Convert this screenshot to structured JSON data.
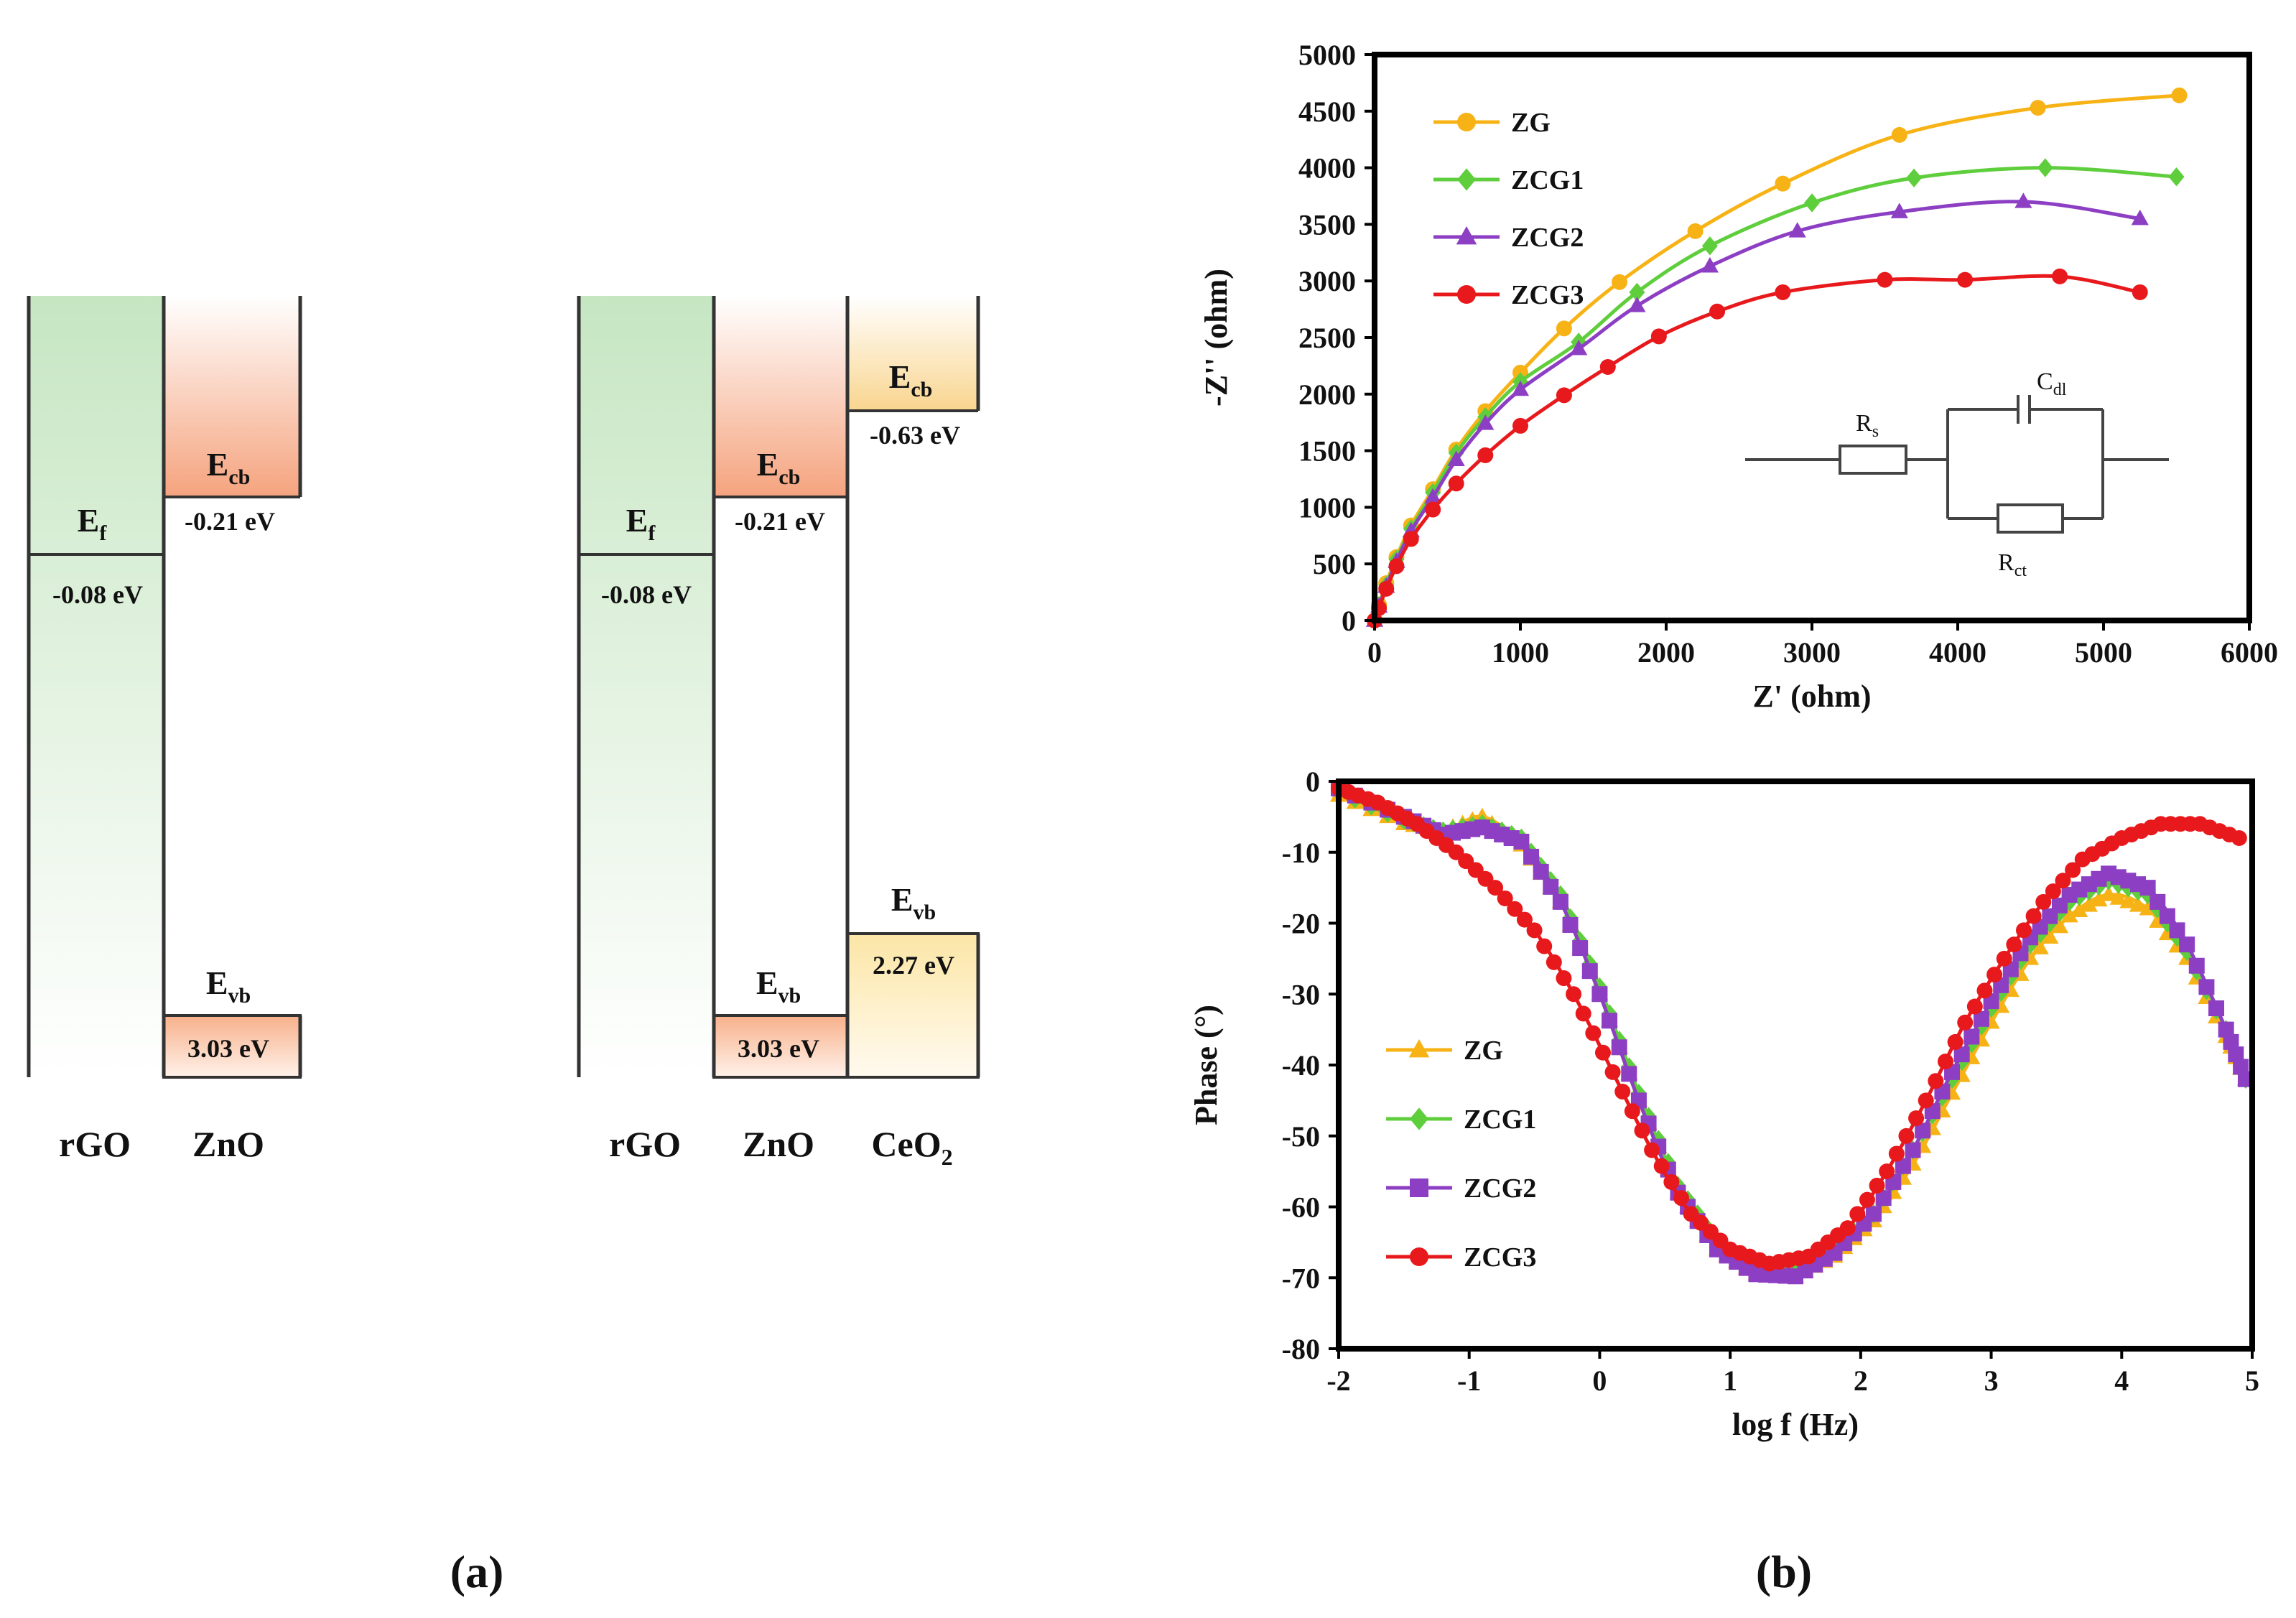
{
  "panel_a": {
    "label": "(a)",
    "diagrams": [
      {
        "materials": [
          {
            "name": "rGO",
            "level_symbol": "E",
            "level_sub": "f",
            "level_value": "-0.08 eV"
          },
          {
            "name": "ZnO",
            "cb_symbol": "E",
            "cb_sub": "cb",
            "cb_value": "-0.21 eV",
            "vb_symbol": "E",
            "vb_sub": "vb",
            "vb_value": "3.03 eV"
          }
        ]
      },
      {
        "materials": [
          {
            "name": "rGO",
            "level_symbol": "E",
            "level_sub": "f",
            "level_value": "-0.08 eV"
          },
          {
            "name": "ZnO",
            "cb_symbol": "E",
            "cb_sub": "cb",
            "cb_value": "-0.21 eV",
            "vb_symbol": "E",
            "vb_sub": "vb",
            "vb_value": "3.03 eV"
          },
          {
            "name": "CeO",
            "name_sub": "2",
            "cb_symbol": "E",
            "cb_sub": "cb",
            "cb_value": "-0.63 eV",
            "vb_symbol": "E",
            "vb_sub": "vb",
            "vb_value": "2.27 eV"
          }
        ]
      }
    ]
  },
  "panel_b_label": "(b)",
  "colors": {
    "ZG": "#f7b316",
    "ZCG1": "#5fce3c",
    "ZCG2": "#8d3fc4",
    "ZCG3": "#e8191c"
  },
  "circuit": {
    "rs": "R",
    "rs_sub": "s",
    "cdl": "C",
    "cdl_sub": "dl",
    "rct": "R",
    "rct_sub": "ct"
  },
  "chart_data": [
    {
      "type": "scatter",
      "title": "",
      "xlabel": "Z' (ohm)",
      "ylabel": "-Z'' (ohm)",
      "xlim": [
        0,
        6000
      ],
      "ylim": [
        0,
        5000
      ],
      "xticks": [
        0,
        1000,
        2000,
        3000,
        4000,
        5000,
        6000
      ],
      "yticks": [
        0,
        500,
        1000,
        1500,
        2000,
        2500,
        3000,
        3500,
        4000,
        4500,
        5000
      ],
      "legend_position": "top-left",
      "series": [
        {
          "name": "ZG",
          "marker": "circle",
          "x": [
            0,
            30,
            80,
            150,
            250,
            400,
            560,
            760,
            1000,
            1300,
            1680,
            2200,
            2800,
            3600,
            4550,
            5520
          ],
          "y": [
            0,
            140,
            330,
            560,
            840,
            1160,
            1510,
            1850,
            2190,
            2580,
            2990,
            3440,
            3860,
            4290,
            4530,
            4640
          ]
        },
        {
          "name": "ZCG1",
          "marker": "diamond",
          "x": [
            0,
            30,
            80,
            150,
            250,
            400,
            560,
            760,
            1000,
            1400,
            1800,
            2300,
            3000,
            3700,
            4600,
            5500
          ],
          "y": [
            0,
            130,
            310,
            540,
            810,
            1130,
            1480,
            1800,
            2110,
            2460,
            2900,
            3310,
            3690,
            3910,
            4000,
            3920
          ]
        },
        {
          "name": "ZCG2",
          "marker": "triangle",
          "x": [
            0,
            30,
            80,
            150,
            250,
            400,
            560,
            760,
            1000,
            1400,
            1800,
            2300,
            2900,
            3600,
            4450,
            5250
          ],
          "y": [
            0,
            125,
            300,
            520,
            790,
            1090,
            1420,
            1740,
            2040,
            2400,
            2780,
            3130,
            3440,
            3610,
            3700,
            3550
          ]
        },
        {
          "name": "ZCG3",
          "marker": "circle",
          "x": [
            0,
            30,
            80,
            150,
            250,
            400,
            560,
            760,
            1000,
            1300,
            1600,
            1950,
            2350,
            2800,
            3500,
            4050,
            4700,
            5250
          ],
          "y": [
            0,
            110,
            280,
            480,
            720,
            980,
            1210,
            1460,
            1720,
            1990,
            2240,
            2510,
            2730,
            2900,
            3010,
            3010,
            3040,
            2900
          ]
        }
      ]
    },
    {
      "type": "line",
      "title": "",
      "xlabel": "log f (Hz)",
      "ylabel": "Phase (°)",
      "xlim": [
        -2,
        5
      ],
      "ylim": [
        -80,
        0
      ],
      "xticks": [
        -2,
        -1,
        0,
        1,
        2,
        3,
        4,
        5
      ],
      "yticks": [
        0,
        -10,
        -20,
        -30,
        -40,
        -50,
        -60,
        -70,
        -80
      ],
      "legend_position": "left",
      "series": [
        {
          "name": "ZG",
          "marker": "triangle",
          "x": [
            -2,
            -1.5,
            -1.2,
            -0.9,
            -0.6,
            -0.3,
            0,
            0.3,
            0.6,
            0.9,
            1.2,
            1.5,
            1.8,
            2.1,
            2.4,
            2.7,
            3.0,
            3.3,
            3.6,
            3.9,
            4.2,
            4.5,
            4.8,
            4.95
          ],
          "y": [
            -2,
            -6,
            -7,
            -5,
            -9,
            -17,
            -30,
            -45,
            -58,
            -66,
            -69.5,
            -69.8,
            -67,
            -62,
            -54,
            -44,
            -34,
            -25,
            -19,
            -16,
            -18,
            -25,
            -36,
            -42
          ]
        },
        {
          "name": "ZCG1",
          "marker": "diamond",
          "x": [
            -2,
            -1.5,
            -1.2,
            -0.9,
            -0.6,
            -0.3,
            0,
            0.3,
            0.6,
            0.9,
            1.2,
            1.5,
            1.8,
            2.1,
            2.4,
            2.7,
            3.0,
            3.3,
            3.6,
            3.9,
            4.2,
            4.5,
            4.8,
            4.95
          ],
          "y": [
            -1.5,
            -5.5,
            -7,
            -6,
            -8,
            -16,
            -29,
            -44,
            -57,
            -65,
            -69,
            -69.3,
            -66,
            -61,
            -52,
            -42,
            -32,
            -23,
            -17,
            -14,
            -16,
            -24,
            -35,
            -42
          ]
        },
        {
          "name": "ZCG2",
          "marker": "square",
          "x": [
            -2,
            -1.5,
            -1.2,
            -0.9,
            -0.6,
            -0.3,
            0,
            0.3,
            0.6,
            0.9,
            1.2,
            1.5,
            1.8,
            2.1,
            2.4,
            2.7,
            3.0,
            3.3,
            3.6,
            3.9,
            4.2,
            4.5,
            4.8,
            4.95
          ],
          "y": [
            -1,
            -5,
            -7.5,
            -6.5,
            -8.5,
            -17,
            -30,
            -45,
            -58,
            -66,
            -69.5,
            -69.8,
            -66.5,
            -61,
            -52,
            -41,
            -31,
            -22,
            -16,
            -13,
            -15,
            -23,
            -35,
            -42
          ]
        },
        {
          "name": "ZCG3",
          "marker": "circle",
          "x": [
            -2,
            -1.7,
            -1.4,
            -1.1,
            -0.8,
            -0.5,
            -0.2,
            0.1,
            0.4,
            0.7,
            1.0,
            1.3,
            1.6,
            1.9,
            2.2,
            2.5,
            2.8,
            3.1,
            3.4,
            3.7,
            4.0,
            4.3,
            4.6,
            4.9
          ],
          "y": [
            -1,
            -3,
            -6,
            -10,
            -15,
            -21,
            -30,
            -41,
            -52,
            -61,
            -66,
            -68,
            -67,
            -63,
            -55,
            -45,
            -34,
            -25,
            -17,
            -11,
            -8,
            -6,
            -6,
            -8
          ]
        }
      ]
    }
  ]
}
